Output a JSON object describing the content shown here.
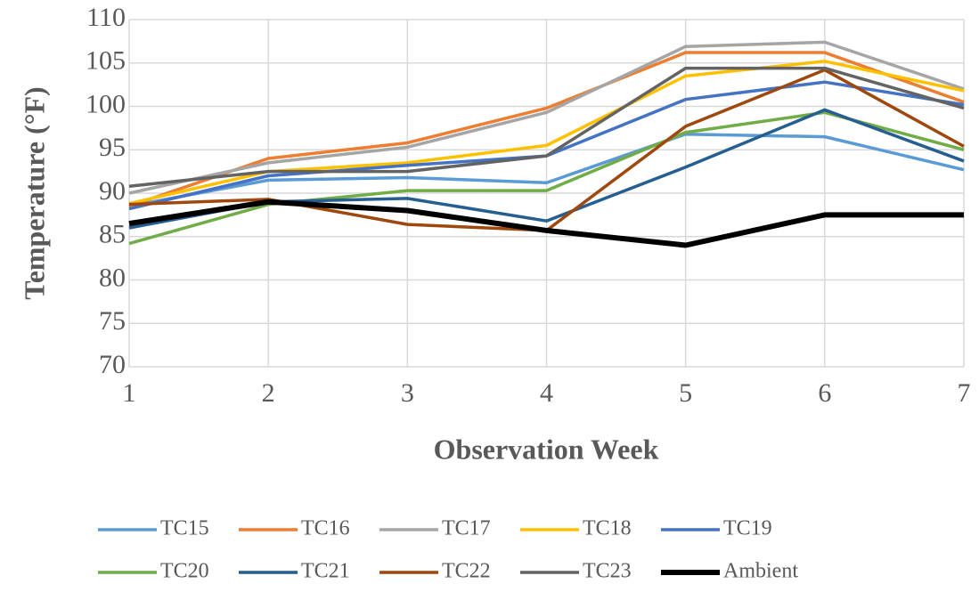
{
  "chart_data": {
    "type": "line",
    "x_label": "Observation Week",
    "y_label": "Temperature  (°F)",
    "x": [
      1,
      2,
      3,
      4,
      5,
      6,
      7
    ],
    "xlim": [
      1,
      7
    ],
    "xticks": [
      1,
      2,
      3,
      4,
      5,
      6,
      7
    ],
    "ylim": [
      70,
      110
    ],
    "yticks": [
      70,
      75,
      80,
      85,
      90,
      95,
      100,
      105,
      110
    ],
    "grid": true,
    "legend": "bottom",
    "series": [
      {
        "name": "TC15",
        "color": "#5b9bd5",
        "values": [
          88.5,
          91.5,
          91.8,
          91.2,
          96.8,
          96.5,
          92.7
        ]
      },
      {
        "name": "TC16",
        "color": "#ed7d31",
        "values": [
          88.5,
          94,
          95.8,
          99.8,
          106.2,
          106.2,
          100.5
        ]
      },
      {
        "name": "TC17",
        "color": "#a5a5a5",
        "values": [
          90,
          93.5,
          95.3,
          99.3,
          106.9,
          107.4,
          102
        ]
      },
      {
        "name": "TC18",
        "color": "#ffc000",
        "values": [
          88.8,
          92.5,
          93.5,
          95.5,
          103.5,
          105.2,
          101.8
        ]
      },
      {
        "name": "TC19",
        "color": "#4472c4",
        "values": [
          88.2,
          92,
          93.2,
          94.3,
          100.8,
          102.8,
          100.2
        ]
      },
      {
        "name": "TC20",
        "color": "#70ad47",
        "values": [
          84.2,
          88.7,
          90.3,
          90.3,
          97,
          99.3,
          95
        ]
      },
      {
        "name": "TC21",
        "color": "#255e91",
        "values": [
          86,
          89,
          89.4,
          86.8,
          93,
          99.6,
          93.7
        ]
      },
      {
        "name": "TC22",
        "color": "#9e480e",
        "values": [
          88.7,
          89.3,
          86.4,
          85.7,
          97.7,
          104.2,
          95.4
        ]
      },
      {
        "name": "TC23",
        "color": "#636363",
        "values": [
          90.8,
          92.5,
          92.5,
          94.3,
          104.4,
          104.4,
          99.8
        ]
      },
      {
        "name": "Ambient",
        "color": "#000000",
        "values": [
          86.5,
          89,
          88,
          85.7,
          84,
          87.5,
          87.5
        ]
      }
    ]
  }
}
